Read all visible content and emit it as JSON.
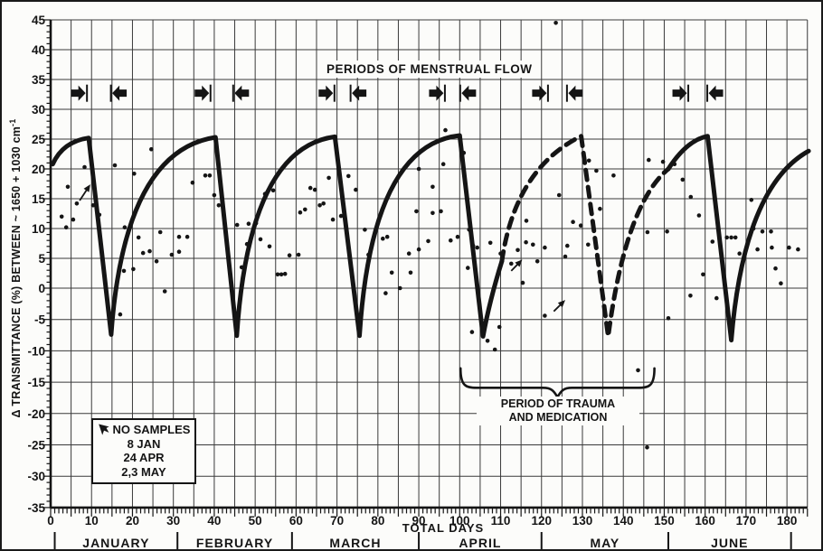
{
  "chart_data": {
    "type": "scatter",
    "title": "PERIODS OF MENSTRUAL FLOW",
    "ylabel": "Δ TRANSMITTANCE (%) BETWEEN ~ 1650 + 1030 cm",
    "ylabel_superscript": "-1",
    "xlabel": "TOTAL DAYS",
    "x_range": [
      0,
      185
    ],
    "y_range": [
      -35,
      45
    ],
    "grid": true,
    "x_tick_labels": [
      0,
      10,
      20,
      30,
      40,
      50,
      60,
      70,
      80,
      90,
      100,
      110,
      120,
      130,
      140,
      150,
      160,
      170,
      180
    ],
    "y_tick_labels": [
      45,
      40,
      35,
      30,
      25,
      20,
      15,
      10,
      5,
      0,
      -5,
      -10,
      -15,
      -20,
      -25,
      -30,
      -35
    ],
    "months": [
      {
        "label": "JANUARY",
        "start": 1,
        "end": 31
      },
      {
        "label": "FEBRUARY",
        "start": 31,
        "end": 59
      },
      {
        "label": "MARCH",
        "start": 59,
        "end": 90
      },
      {
        "label": "APRIL",
        "start": 90,
        "end": 120
      },
      {
        "label": "MAY",
        "start": 120,
        "end": 151
      },
      {
        "label": "JUNE",
        "start": 151,
        "end": 181
      }
    ],
    "flow_marker_level": 32.7,
    "menstrual_flow_periods_days": [
      [
        7.0,
        16.6
      ],
      [
        37.2,
        46.5
      ],
      [
        67.5,
        75.2
      ],
      [
        94.5,
        102.0
      ],
      [
        119.7,
        128.1
      ],
      [
        154.0,
        162.4
      ]
    ],
    "curve_segments": [
      {
        "style": "solid",
        "cmds": [
          [
            "M",
            0.5,
            20.8
          ],
          [
            "Q",
            3,
            24.6,
            9.3,
            25.2
          ],
          [
            "L",
            14.8,
            -7.4
          ],
          [
            "Q",
            18,
            23,
            40.3,
            25.3
          ],
          [
            "L",
            45.5,
            -7.6
          ],
          [
            "Q",
            48.5,
            23.5,
            69.5,
            25.4
          ],
          [
            "L",
            75.5,
            -7.6
          ],
          [
            "Q",
            78.5,
            24,
            100,
            25.6
          ],
          [
            "L",
            105.7,
            -7.7
          ],
          [
            "Q",
            107.3,
            -2,
            110.3,
            4.5
          ]
        ]
      },
      {
        "style": "dashed",
        "cmds": [
          [
            "M",
            110.3,
            4.5
          ],
          [
            "Q",
            113.5,
            20,
            129.7,
            25.5
          ],
          [
            "L",
            136.3,
            -7.7
          ],
          [
            "Q",
            140.5,
            14,
            151,
            20
          ]
        ]
      },
      {
        "style": "solid",
        "cmds": [
          [
            "M",
            151,
            20
          ],
          [
            "Q",
            155.5,
            24.8,
            160.6,
            25.5
          ],
          [
            "L",
            166.4,
            -8.3
          ],
          [
            "Q",
            169.5,
            17,
            185.3,
            23
          ]
        ]
      }
    ],
    "scatter_points": [
      [
        2.7,
        12.0
      ],
      [
        3.8,
        10.2
      ],
      [
        4.2,
        17.0
      ],
      [
        5.5,
        11.5
      ],
      [
        6.4,
        14.2
      ],
      [
        8.3,
        20.3
      ],
      [
        10.4,
        13.9
      ],
      [
        11.9,
        12.3
      ],
      [
        15.7,
        20.6
      ],
      [
        17,
        -4.2
      ],
      [
        17.9,
        2.9
      ],
      [
        18.1,
        10.2
      ],
      [
        20.2,
        3.2
      ],
      [
        20.4,
        19.2
      ],
      [
        21.5,
        8.5
      ],
      [
        22.6,
        5.9
      ],
      [
        24.2,
        6.2
      ],
      [
        24.6,
        23.3
      ],
      [
        25.9,
        4.5
      ],
      [
        26.8,
        9.4
      ],
      [
        27.9,
        -0.5
      ],
      [
        29.6,
        5.6
      ],
      [
        31.4,
        8.6
      ],
      [
        31.4,
        6.1
      ],
      [
        33.4,
        8.6
      ],
      [
        34.7,
        17.7
      ],
      [
        37.8,
        18.9
      ],
      [
        38.9,
        18.9
      ],
      [
        40,
        15.6
      ],
      [
        41.1,
        13.9
      ],
      [
        45.6,
        10.6
      ],
      [
        46.7,
        3.5
      ],
      [
        48,
        7.4
      ],
      [
        48.4,
        10.8
      ],
      [
        50.2,
        10.9
      ],
      [
        51.3,
        8.2
      ],
      [
        52.4,
        15.8
      ],
      [
        53.5,
        7.0
      ],
      [
        54.4,
        16.4
      ],
      [
        55.5,
        2.3
      ],
      [
        56.4,
        2.3
      ],
      [
        57.3,
        2.4
      ],
      [
        58.4,
        5.5
      ],
      [
        60.6,
        5.6
      ],
      [
        61,
        12.7
      ],
      [
        62.2,
        13.2
      ],
      [
        63.5,
        16.8
      ],
      [
        64.6,
        16.5
      ],
      [
        65.8,
        13.9
      ],
      [
        66.7,
        14.2
      ],
      [
        68,
        18.5
      ],
      [
        69,
        11.5
      ],
      [
        71,
        12.1
      ],
      [
        72.8,
        18.8
      ],
      [
        74.6,
        16.5
      ],
      [
        76.8,
        9.8
      ],
      [
        77.7,
        5.6
      ],
      [
        81.2,
        8.3
      ],
      [
        81.9,
        -0.8
      ],
      [
        82.3,
        8.6
      ],
      [
        83.4,
        2.6
      ],
      [
        85.4,
        0
      ],
      [
        87.6,
        5.8
      ],
      [
        88,
        2.6
      ],
      [
        89.4,
        12.9
      ],
      [
        90,
        20
      ],
      [
        90,
        6.5
      ],
      [
        92.3,
        7.9
      ],
      [
        93.4,
        12.6
      ],
      [
        93.4,
        17.0
      ],
      [
        95.4,
        12.9
      ],
      [
        96,
        20.8
      ],
      [
        96.5,
        26.5
      ],
      [
        97.8,
        8.0
      ],
      [
        99.5,
        8.6
      ],
      [
        101,
        22.7
      ],
      [
        102,
        3.4
      ],
      [
        102.3,
        9.8
      ],
      [
        103,
        -7.0
      ],
      [
        103.3,
        7.1
      ],
      [
        104.3,
        6.8
      ],
      [
        106.8,
        -8.4
      ],
      [
        107.5,
        7.6
      ],
      [
        108.6,
        -9.8
      ],
      [
        109.7,
        -6.2
      ],
      [
        110,
        5.8
      ],
      [
        112.6,
        4.1
      ],
      [
        114.2,
        6.4
      ],
      [
        115.4,
        0.9
      ],
      [
        116.2,
        7.7
      ],
      [
        116.3,
        11.3
      ],
      [
        117.9,
        7.3
      ],
      [
        119,
        4.5
      ],
      [
        120.8,
        6.8
      ],
      [
        120.8,
        -4.4
      ],
      [
        123.5,
        44.5
      ],
      [
        124.3,
        15.6
      ],
      [
        125.8,
        5.3
      ],
      [
        126.3,
        7.1
      ],
      [
        127.7,
        11.1
      ],
      [
        129.6,
        10.5
      ],
      [
        131.4,
        7.3
      ],
      [
        131.6,
        21.4
      ],
      [
        133.4,
        19.7
      ],
      [
        134.3,
        13.3
      ],
      [
        137.6,
        18.9
      ],
      [
        138,
        -0.5
      ],
      [
        143.6,
        -13.1
      ],
      [
        145.8,
        -25.4
      ],
      [
        145.9,
        9.4
      ],
      [
        146.2,
        21.5
      ],
      [
        149.7,
        21.2
      ],
      [
        150.7,
        9.5
      ],
      [
        151,
        -4.8
      ],
      [
        152.5,
        20.8
      ],
      [
        154.5,
        18.2
      ],
      [
        156.4,
        -1.2
      ],
      [
        156.5,
        15.3
      ],
      [
        158.5,
        12.2
      ],
      [
        159.5,
        2.3
      ],
      [
        161.8,
        7.8
      ],
      [
        162.8,
        -1.6
      ],
      [
        165.3,
        8.5
      ],
      [
        166.4,
        8.5
      ],
      [
        167.4,
        8.5
      ],
      [
        168.4,
        5.8
      ],
      [
        171.3,
        14.8
      ],
      [
        171.8,
        10.0
      ],
      [
        172.8,
        6.5
      ],
      [
        174,
        9.5
      ],
      [
        176.1,
        9.5
      ],
      [
        176.3,
        6.8
      ],
      [
        177.2,
        3.3
      ],
      [
        178.5,
        0.8
      ],
      [
        180.5,
        6.8
      ],
      [
        182.7,
        6.5
      ]
    ],
    "no_sample_arrows": [
      {
        "from": [
          7.1,
          14.7
        ],
        "to": [
          9.7,
          17.4
        ]
      },
      {
        "from": [
          112.6,
          2.9
        ],
        "to": [
          115.3,
          4.8
        ]
      },
      {
        "from": [
          123.0,
          -3.7
        ],
        "to": [
          125.8,
          -1.9
        ]
      }
    ],
    "legend": {
      "icon": "cursor-arrow-icon",
      "title": "NO SAMPLES",
      "items": [
        "8 JAN",
        "24 APR",
        "2,3 MAY"
      ]
    },
    "annotations": {
      "trauma_line1": "PERIOD OF TRAUMA",
      "trauma_line2": "AND MEDICATION",
      "trauma_span_days": [
        100.2,
        147.6
      ],
      "trauma_brace_levels": {
        "v_top": -12.8,
        "v_body": -15.9,
        "v_dip": -17.4
      }
    },
    "colors": {
      "ink": "#151515",
      "grid": "#3a3a3a",
      "paper": "#fcfcfa"
    }
  }
}
